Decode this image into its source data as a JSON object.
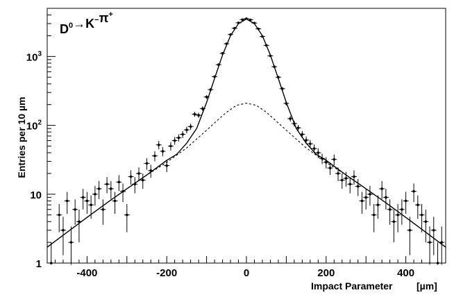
{
  "chart_data": {
    "type": "scatter",
    "title": {
      "parts": [
        {
          "text": "D",
          "sup": "0"
        },
        {
          "text": "→K",
          "sup": "−"
        },
        {
          "text": "π",
          "sup": "+"
        }
      ]
    },
    "xlabel": "Impact Parameter",
    "xunit": "[µm]",
    "ylabel": "Entries per 10   µm",
    "xlim": [
      -500,
      500
    ],
    "ylim": [
      1,
      5000
    ],
    "yscale": "log",
    "x_ticks": [
      -400,
      -200,
      0,
      200,
      400
    ],
    "x_tick_labels": [
      "-400",
      "-200",
      "0",
      "200",
      "400"
    ],
    "y_ticks": [
      1,
      10,
      100,
      1000
    ],
    "y_tick_labels": {
      "1": {
        "base": "1",
        "sup": ""
      },
      "10": {
        "base": "10",
        "sup": ""
      },
      "100": {
        "base": "10",
        "sup": "2"
      },
      "1000": {
        "base": "10",
        "sup": "3"
      }
    },
    "grid": false,
    "legend": "none",
    "series": [
      {
        "kind": "points_with_errors",
        "color": "#000000",
        "x": [
          -490,
          -470,
          -460,
          -450,
          -440,
          -430,
          -420,
          -410,
          -400,
          -390,
          -380,
          -370,
          -360,
          -350,
          -340,
          -330,
          -320,
          -310,
          -300,
          -290,
          -280,
          -270,
          -260,
          -250,
          -240,
          -230,
          -220,
          -210,
          -200,
          -190,
          -180,
          -170,
          -160,
          -150,
          -140,
          -130,
          -120,
          -110,
          -100,
          -90,
          -80,
          -70,
          -60,
          -50,
          -40,
          -30,
          -20,
          -10,
          0,
          10,
          20,
          30,
          40,
          50,
          60,
          70,
          80,
          90,
          100,
          110,
          120,
          130,
          140,
          150,
          160,
          170,
          180,
          190,
          200,
          210,
          220,
          230,
          240,
          250,
          260,
          270,
          280,
          290,
          300,
          310,
          320,
          330,
          340,
          350,
          360,
          370,
          380,
          390,
          400,
          410,
          420,
          430,
          440,
          450,
          460,
          470,
          480,
          490
        ],
        "y": [
          1,
          5,
          3,
          8,
          2,
          6,
          4,
          9,
          8,
          7,
          10,
          12,
          6,
          14,
          12,
          8,
          15,
          11,
          5,
          18,
          14,
          20,
          16,
          28,
          22,
          36,
          52,
          42,
          26,
          50,
          60,
          66,
          74,
          86,
          96,
          145,
          140,
          175,
          258,
          330,
          510,
          760,
          1110,
          1530,
          2080,
          2570,
          3080,
          3430,
          3540,
          3410,
          3060,
          2520,
          1950,
          1450,
          1020,
          710,
          500,
          340,
          208,
          125,
          106,
          92,
          74,
          61,
          54,
          46,
          40,
          33,
          29,
          24,
          32,
          20,
          16,
          17,
          14,
          18,
          13,
          8,
          9,
          10,
          5,
          7,
          12,
          9,
          6,
          4,
          5,
          6,
          8,
          3,
          11,
          7,
          5,
          4,
          2,
          3,
          1,
          2
        ],
        "yerr": [
          1,
          2.2,
          1.7,
          2.8,
          1.4,
          2.4,
          2,
          3,
          2.8,
          2.6,
          3.2,
          3.5,
          2.4,
          3.7,
          3.5,
          2.8,
          3.9,
          3.3,
          2.2,
          4.2,
          3.7,
          4.5,
          4,
          5.3,
          4.7,
          6,
          7.2,
          6.5,
          5.1,
          7.1,
          7.7,
          8.1,
          8.6,
          9.3,
          9.8,
          12,
          11.8,
          13.2,
          16,
          18.2,
          22.6,
          27.6,
          33.3,
          39.1,
          45.6,
          50.7,
          55.5,
          58.6,
          59.5,
          58.4,
          55.3,
          50.2,
          44.2,
          38.1,
          31.9,
          26.6,
          22.4,
          18.4,
          14.4,
          11.2,
          10.3,
          9.6,
          8.6,
          7.8,
          7.3,
          6.8,
          6.3,
          5.7,
          5.4,
          4.9,
          5.7,
          4.5,
          4,
          4.1,
          3.7,
          4.2,
          3.6,
          2.8,
          3,
          3.2,
          2.2,
          2.6,
          3.5,
          3,
          2.4,
          2,
          2.2,
          2.4,
          2.8,
          1.7,
          3.3,
          2.6,
          2.2,
          2,
          1.4,
          1.7,
          1,
          1.4
        ]
      },
      {
        "kind": "fit_total",
        "style": "solid",
        "color": "#000000",
        "x": [
          -500,
          -450,
          -400,
          -350,
          -300,
          -250,
          -200,
          -175,
          -150,
          -125,
          -100,
          -80,
          -60,
          -40,
          -20,
          0,
          20,
          40,
          60,
          80,
          100,
          125,
          150,
          175,
          200,
          250,
          300,
          350,
          400,
          450,
          500
        ],
        "y": [
          1.7,
          2.8,
          4.6,
          7.5,
          12,
          19,
          31,
          38,
          55,
          90,
          215,
          480,
          1050,
          2000,
          3000,
          3500,
          3000,
          2000,
          1050,
          480,
          215,
          90,
          55,
          38,
          31,
          19,
          12,
          7.5,
          4.6,
          2.8,
          1.7
        ]
      },
      {
        "kind": "background",
        "style": "dashed",
        "color": "#000000",
        "x": [
          -500,
          -450,
          -400,
          -350,
          -300,
          -250,
          -200,
          -150,
          -100,
          -75,
          -50,
          -25,
          0,
          25,
          50,
          75,
          100,
          150,
          200,
          250,
          300,
          350,
          400,
          450,
          500
        ],
        "y": [
          1.7,
          2.8,
          4.6,
          7.5,
          12,
          19,
          29,
          47,
          85,
          115,
          155,
          195,
          210,
          195,
          155,
          115,
          85,
          47,
          29,
          19,
          12,
          7.5,
          4.6,
          2.8,
          1.7
        ]
      }
    ]
  }
}
